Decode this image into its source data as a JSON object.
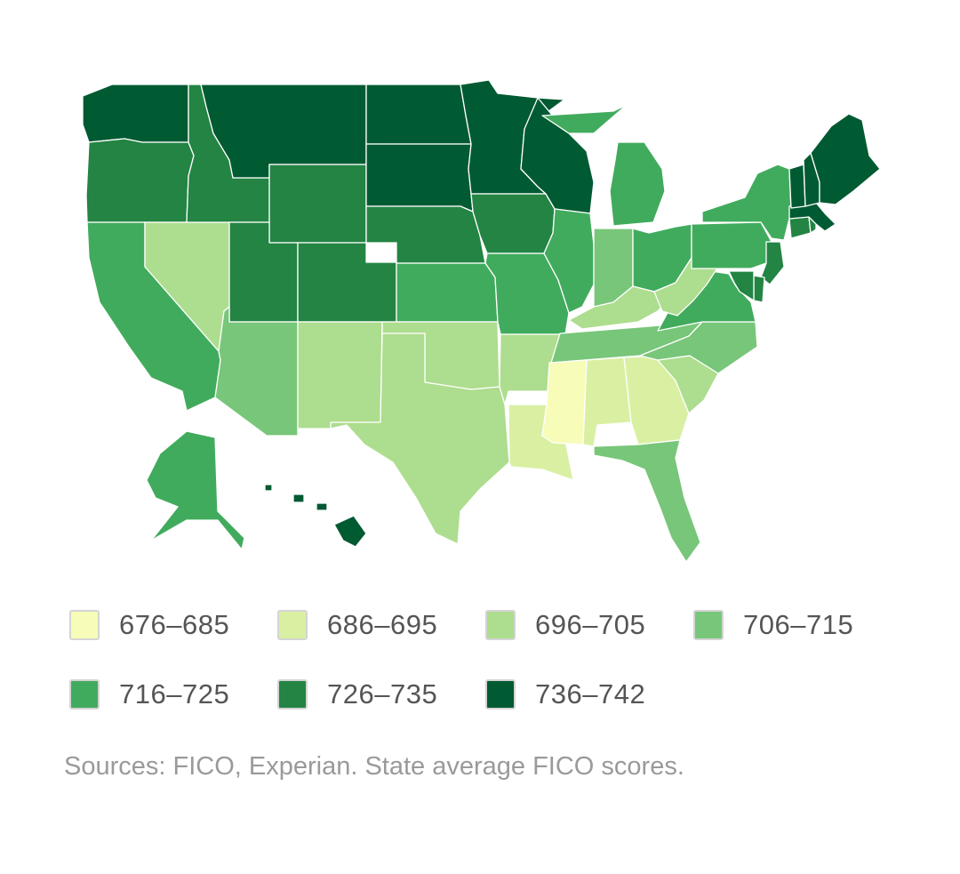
{
  "map": {
    "colors": {
      "b676": "#f7fcb9",
      "b686": "#d9f0a3",
      "b696": "#addd8e",
      "b706": "#78c679",
      "b716": "#41ab5d",
      "b726": "#238443",
      "b736": "#005a32"
    },
    "states": [
      {
        "id": "WA",
        "bin": "b736"
      },
      {
        "id": "OR",
        "bin": "b726"
      },
      {
        "id": "CA",
        "bin": "b716"
      },
      {
        "id": "NV",
        "bin": "b696"
      },
      {
        "id": "ID",
        "bin": "b726"
      },
      {
        "id": "MT",
        "bin": "b736"
      },
      {
        "id": "WY",
        "bin": "b726"
      },
      {
        "id": "UT",
        "bin": "b726"
      },
      {
        "id": "AZ",
        "bin": "b706"
      },
      {
        "id": "CO",
        "bin": "b726"
      },
      {
        "id": "NM",
        "bin": "b696"
      },
      {
        "id": "ND",
        "bin": "b736"
      },
      {
        "id": "SD",
        "bin": "b736"
      },
      {
        "id": "NE",
        "bin": "b726"
      },
      {
        "id": "KS",
        "bin": "b716"
      },
      {
        "id": "OK",
        "bin": "b696"
      },
      {
        "id": "TX",
        "bin": "b696"
      },
      {
        "id": "MN",
        "bin": "b736"
      },
      {
        "id": "IA",
        "bin": "b726"
      },
      {
        "id": "MO",
        "bin": "b716"
      },
      {
        "id": "AR",
        "bin": "b696"
      },
      {
        "id": "LA",
        "bin": "b686"
      },
      {
        "id": "WI",
        "bin": "b736"
      },
      {
        "id": "IL",
        "bin": "b716"
      },
      {
        "id": "MI",
        "bin": "b716"
      },
      {
        "id": "IN",
        "bin": "b706"
      },
      {
        "id": "OH",
        "bin": "b716"
      },
      {
        "id": "KY",
        "bin": "b696"
      },
      {
        "id": "TN",
        "bin": "b706"
      },
      {
        "id": "MS",
        "bin": "b676"
      },
      {
        "id": "AL",
        "bin": "b686"
      },
      {
        "id": "GA",
        "bin": "b686"
      },
      {
        "id": "FL",
        "bin": "b706"
      },
      {
        "id": "SC",
        "bin": "b696"
      },
      {
        "id": "NC",
        "bin": "b706"
      },
      {
        "id": "VA",
        "bin": "b716"
      },
      {
        "id": "WV",
        "bin": "b696"
      },
      {
        "id": "PA",
        "bin": "b716"
      },
      {
        "id": "NY",
        "bin": "b716"
      },
      {
        "id": "NJ",
        "bin": "b726"
      },
      {
        "id": "DE",
        "bin": "b726"
      },
      {
        "id": "MD",
        "bin": "b726"
      },
      {
        "id": "CT",
        "bin": "b726"
      },
      {
        "id": "RI",
        "bin": "b726"
      },
      {
        "id": "MA",
        "bin": "b736"
      },
      {
        "id": "VT",
        "bin": "b736"
      },
      {
        "id": "NH",
        "bin": "b736"
      },
      {
        "id": "ME",
        "bin": "b736"
      },
      {
        "id": "AK",
        "bin": "b716"
      },
      {
        "id": "HI",
        "bin": "b736"
      }
    ]
  },
  "legend": {
    "items": [
      {
        "label": "676–685",
        "color": "#f7fcb9"
      },
      {
        "label": "686–695",
        "color": "#d9f0a3"
      },
      {
        "label": "696–705",
        "color": "#addd8e"
      },
      {
        "label": "706–715",
        "color": "#78c679"
      },
      {
        "label": "716–725",
        "color": "#41ab5d"
      },
      {
        "label": "726–735",
        "color": "#238443"
      },
      {
        "label": "736–742",
        "color": "#005a32"
      }
    ]
  },
  "footer": {
    "source": "Sources: FICO, Experian. State average FICO scores."
  }
}
